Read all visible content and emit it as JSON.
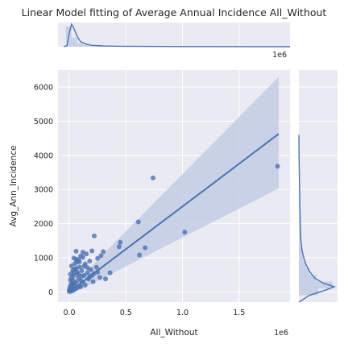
{
  "chart_data": {
    "type": "scatter",
    "title": "Linear Model fitting of Average Annual Incidence All_Without",
    "xlabel": "All_Without",
    "ylabel": "Avg_Ann_Incidence",
    "x_offset_text": "1e6",
    "top_offset_text": "1e6",
    "xlim": [
      -0.1,
      1.95
    ],
    "ylim": [
      -300,
      6500
    ],
    "x_ticks": [
      0.0,
      0.5,
      1.0,
      1.5
    ],
    "x_tick_labels": [
      "0.0",
      "0.5",
      "1.0",
      "1.5"
    ],
    "y_ticks": [
      0,
      1000,
      2000,
      3000,
      4000,
      5000,
      6000
    ],
    "y_tick_labels": [
      "0",
      "1000",
      "2000",
      "3000",
      "4000",
      "5000",
      "6000"
    ],
    "grid": true,
    "colors": {
      "background": "#eaeaf2",
      "grid": "#ffffff",
      "points": "#4c72b0",
      "line": "#4c72b0",
      "band": "#c3cde5"
    },
    "regression": {
      "x": [
        0.0,
        1.85
      ],
      "y": [
        0,
        4630
      ],
      "ci_lower": [
        -100,
        3030
      ],
      "ci_upper": [
        100,
        6300
      ]
    },
    "points": [
      [
        1.84,
        3680
      ],
      [
        0.74,
        3340
      ],
      [
        1.02,
        1750
      ],
      [
        0.61,
        2050
      ],
      [
        0.62,
        1080
      ],
      [
        0.67,
        1290
      ],
      [
        0.45,
        1450
      ],
      [
        0.44,
        1320
      ],
      [
        0.22,
        1640
      ],
      [
        0.3,
        1180
      ],
      [
        0.28,
        1060
      ],
      [
        0.25,
        980
      ],
      [
        0.2,
        1200
      ],
      [
        0.18,
        900
      ],
      [
        0.15,
        1110
      ],
      [
        0.12,
        1160
      ],
      [
        0.1,
        1050
      ],
      [
        0.08,
        950
      ],
      [
        0.06,
        1190
      ],
      [
        0.05,
        830
      ],
      [
        0.04,
        990
      ],
      [
        0.14,
        820
      ],
      [
        0.16,
        710
      ],
      [
        0.19,
        650
      ],
      [
        0.22,
        540
      ],
      [
        0.27,
        420
      ],
      [
        0.32,
        380
      ],
      [
        0.36,
        560
      ],
      [
        0.24,
        720
      ],
      [
        0.2,
        480
      ],
      [
        0.17,
        380
      ],
      [
        0.13,
        480
      ],
      [
        0.11,
        620
      ],
      [
        0.09,
        730
      ],
      [
        0.07,
        580
      ],
      [
        0.05,
        660
      ],
      [
        0.04,
        480
      ],
      [
        0.03,
        350
      ],
      [
        0.02,
        260
      ],
      [
        0.02,
        120
      ],
      [
        0.01,
        60
      ],
      [
        0.0,
        10
      ],
      [
        0.01,
        190
      ],
      [
        0.03,
        220
      ],
      [
        0.06,
        300
      ],
      [
        0.08,
        420
      ],
      [
        0.1,
        340
      ],
      [
        0.12,
        280
      ],
      [
        0.14,
        200
      ],
      [
        0.1,
        150
      ],
      [
        0.07,
        120
      ],
      [
        0.05,
        80
      ],
      [
        0.03,
        40
      ],
      [
        0.015,
        30
      ],
      [
        0.02,
        420
      ],
      [
        0.04,
        560
      ],
      [
        0.06,
        690
      ],
      [
        0.08,
        520
      ],
      [
        0.09,
        180
      ],
      [
        0.11,
        470
      ],
      [
        0.05,
        250
      ],
      [
        0.04,
        150
      ],
      [
        0.025,
        90
      ],
      [
        0.0,
        50
      ],
      [
        0.005,
        120
      ],
      [
        0.16,
        560
      ],
      [
        0.18,
        440
      ],
      [
        0.21,
        300
      ],
      [
        0.25,
        580
      ],
      [
        0.13,
        750
      ],
      [
        0.07,
        880
      ],
      [
        0.02,
        760
      ],
      [
        0.03,
        630
      ],
      [
        0.01,
        520
      ],
      [
        0.01,
        350
      ],
      [
        0.06,
        950
      ],
      [
        0.09,
        880
      ],
      [
        0.12,
        1010
      ]
    ],
    "x_density": [
      [
        -0.05,
        0.0
      ],
      [
        -0.02,
        0.05
      ],
      [
        0.0,
        0.62
      ],
      [
        0.02,
        1.0
      ],
      [
        0.04,
        0.82
      ],
      [
        0.07,
        0.45
      ],
      [
        0.1,
        0.22
      ],
      [
        0.15,
        0.11
      ],
      [
        0.2,
        0.06
      ],
      [
        0.3,
        0.035
      ],
      [
        0.45,
        0.02
      ],
      [
        0.65,
        0.015
      ],
      [
        0.8,
        0.01
      ],
      [
        1.0,
        0.008
      ],
      [
        1.3,
        0.005
      ],
      [
        1.6,
        0.004
      ],
      [
        1.85,
        0.003
      ],
      [
        1.95,
        0.0
      ]
    ],
    "x_hist": [
      [
        -0.03,
        0.02,
        0.9
      ],
      [
        0.02,
        0.07,
        0.4
      ],
      [
        0.07,
        0.12,
        0.15
      ],
      [
        0.12,
        0.17,
        0.07
      ],
      [
        0.17,
        0.22,
        0.04
      ],
      [
        0.22,
        0.32,
        0.025
      ],
      [
        0.32,
        0.5,
        0.015
      ],
      [
        0.5,
        0.8,
        0.01
      ],
      [
        0.8,
        1.1,
        0.006
      ],
      [
        1.1,
        1.9,
        0.004
      ]
    ],
    "y_density": [
      [
        -300,
        0.0
      ],
      [
        -100,
        0.3
      ],
      [
        50,
        0.75
      ],
      [
        150,
        1.0
      ],
      [
        250,
        0.7
      ],
      [
        400,
        0.45
      ],
      [
        600,
        0.3
      ],
      [
        800,
        0.2
      ],
      [
        1000,
        0.14
      ],
      [
        1200,
        0.09
      ],
      [
        1500,
        0.06
      ],
      [
        2000,
        0.04
      ],
      [
        2500,
        0.03
      ],
      [
        3000,
        0.02
      ],
      [
        3500,
        0.012
      ],
      [
        4000,
        0.006
      ],
      [
        4600,
        0.0
      ]
    ],
    "y_hist": [
      [
        -100,
        100,
        0.55
      ],
      [
        100,
        300,
        0.95
      ],
      [
        300,
        500,
        0.5
      ],
      [
        500,
        700,
        0.3
      ],
      [
        700,
        900,
        0.2
      ],
      [
        900,
        1100,
        0.13
      ],
      [
        1100,
        1300,
        0.08
      ],
      [
        1300,
        1700,
        0.05
      ],
      [
        1700,
        2200,
        0.03
      ],
      [
        2200,
        3400,
        0.015
      ],
      [
        3400,
        3800,
        0.01
      ]
    ]
  }
}
